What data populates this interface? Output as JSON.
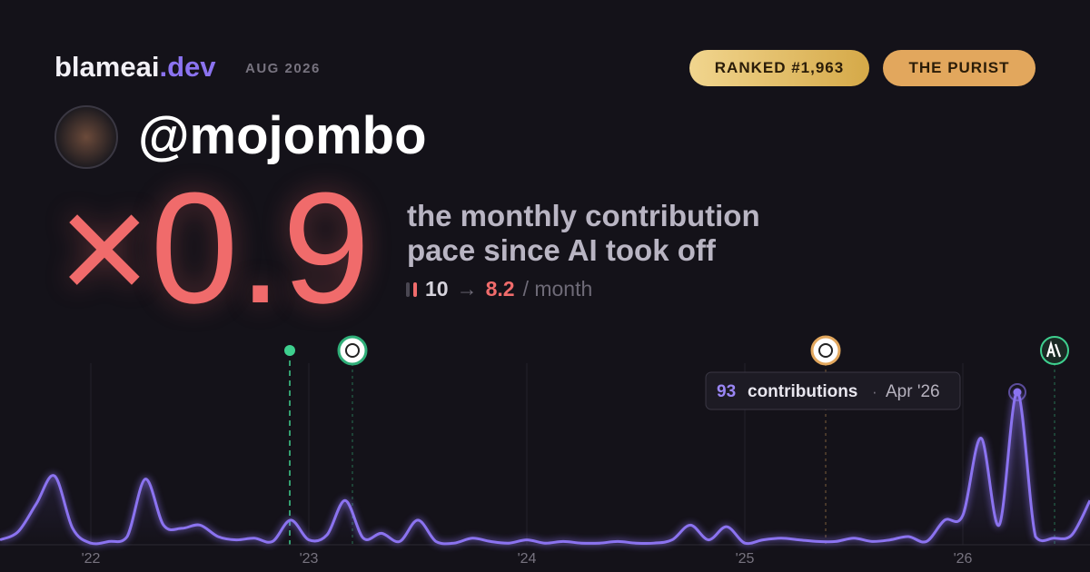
{
  "brand": {
    "name": "blameai",
    "tld": ".dev",
    "date": "AUG 2026"
  },
  "badges": [
    "RANKED #1,963",
    "THE PURIST"
  ],
  "profile": {
    "handle": "@mojombo"
  },
  "headline": {
    "multiplier": "×0.9",
    "line1": "the monthly contribution",
    "line2": "pace since AI took off",
    "before": "10",
    "arrow": "→",
    "after": "8.2",
    "unit": "/ month"
  },
  "chart_data": {
    "type": "line",
    "categories": [
      null,
      null,
      null,
      null,
      null,
      "'22",
      null,
      null,
      null,
      null,
      null,
      null,
      null,
      null,
      null,
      null,
      null,
      "'23",
      null,
      null,
      null,
      null,
      null,
      null,
      null,
      null,
      null,
      null,
      null,
      "'24",
      null,
      null,
      null,
      null,
      null,
      null,
      null,
      null,
      null,
      null,
      null,
      "'25",
      null,
      null,
      null,
      null,
      null,
      null,
      null,
      null,
      null,
      null,
      null,
      "'26",
      null,
      null,
      null,
      null,
      null,
      null,
      null
    ],
    "series": [
      {
        "name": "contributions",
        "color": "#8b73f0",
        "values": [
          3,
          8,
          25,
          42,
          10,
          1,
          2,
          5,
          40,
          12,
          10,
          12,
          5,
          3,
          4,
          2,
          15,
          3,
          6,
          27,
          4,
          7,
          2,
          15,
          2,
          1,
          4,
          2,
          1,
          3,
          1,
          2,
          1,
          1,
          2,
          1,
          1,
          3,
          12,
          3,
          11,
          1,
          3,
          4,
          3,
          2,
          2,
          4,
          2,
          3,
          5,
          2,
          15,
          18,
          65,
          12,
          93,
          5,
          4,
          6,
          27
        ]
      }
    ],
    "ylim": [
      0,
      93
    ],
    "tooltip": {
      "label": "contributions",
      "separator": "·",
      "date": "Apr '26"
    }
  }
}
